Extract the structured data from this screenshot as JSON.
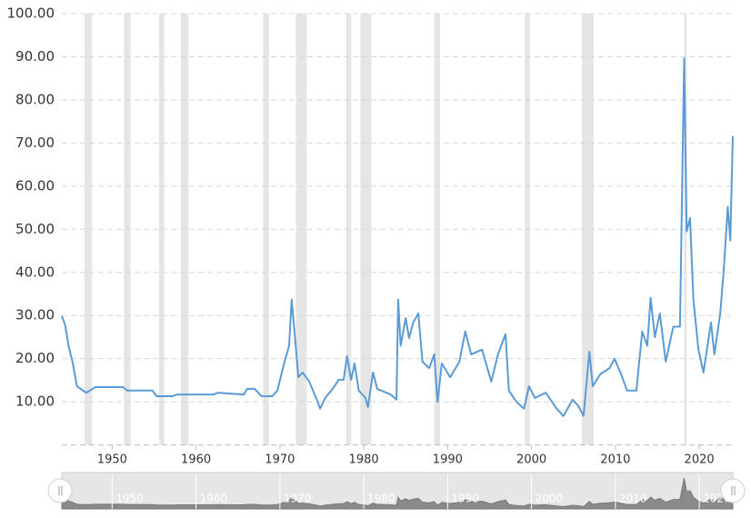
{
  "chart_data": {
    "type": "line",
    "x": [
      1944.0,
      1944.4,
      1944.8,
      1945.3,
      1945.8,
      1946.9,
      1948.0,
      1951.3,
      1951.8,
      1954.8,
      1955.3,
      1957.2,
      1957.8,
      1962.1,
      1962.6,
      1965.7,
      1966.1,
      1967.0,
      1967.8,
      1969.1,
      1969.7,
      1970.5,
      1971.1,
      1971.4,
      1971.8,
      1972.2,
      1972.7,
      1973.5,
      1974.4,
      1974.8,
      1975.4,
      1976.3,
      1977.0,
      1977.6,
      1978.0,
      1978.5,
      1978.9,
      1979.4,
      1980.2,
      1980.5,
      1981.1,
      1981.6,
      1983.2,
      1983.9,
      1984.1,
      1984.4,
      1985.0,
      1985.4,
      1985.9,
      1986.5,
      1987.0,
      1987.8,
      1988.4,
      1988.8,
      1989.3,
      1990.3,
      1991.4,
      1992.1,
      1992.8,
      1994.1,
      1995.2,
      1996.0,
      1996.9,
      1997.3,
      1998.2,
      1999.1,
      1999.7,
      2000.4,
      2001.7,
      2003.0,
      2003.8,
      2004.9,
      2005.6,
      2006.2,
      2006.9,
      2007.3,
      2008.2,
      2009.3,
      2009.9,
      2010.6,
      2011.4,
      2012.5,
      2013.2,
      2013.8,
      2014.2,
      2014.7,
      2015.3,
      2016.0,
      2016.9,
      2017.7,
      2018.2,
      2018.5,
      2018.9,
      2019.3,
      2019.9,
      2020.5,
      2021.4,
      2021.8,
      2022.5,
      2022.9,
      2023.4,
      2023.7,
      2024.0
    ],
    "series": [
      {
        "color": "#5b9bd5",
        "values": [
          29.9,
          27.8,
          23,
          19,
          13.6,
          12.1,
          13.4,
          13.4,
          12.6,
          12.6,
          11.3,
          11.3,
          11.7,
          11.7,
          12.1,
          11.7,
          13,
          13,
          11.3,
          11.3,
          12.6,
          18.9,
          23,
          33.7,
          25,
          15.7,
          16.8,
          14.7,
          10.5,
          8.4,
          10.9,
          13,
          15.1,
          15.1,
          20.6,
          15.1,
          18.9,
          12.6,
          10.9,
          8.8,
          16.8,
          13,
          11.7,
          10.5,
          33.7,
          23,
          29.4,
          24.8,
          28.4,
          30.5,
          19.3,
          17.8,
          21,
          10,
          18.9,
          15.7,
          19.3,
          26.3,
          21,
          22.1,
          14.7,
          21,
          25.7,
          12.6,
          10,
          8.4,
          13.6,
          10.9,
          12.1,
          8.4,
          6.7,
          10.5,
          9,
          6.7,
          21.6,
          13.6,
          16.4,
          17.8,
          20,
          16.8,
          12.6,
          12.6,
          26.3,
          23,
          34.1,
          25,
          30.5,
          19.3,
          27.4,
          27.4,
          89.6,
          49.5,
          52.6,
          33.7,
          22.1,
          16.8,
          28.4,
          21,
          30.5,
          40,
          55.2,
          47.4,
          71.6
        ]
      }
    ],
    "recessions": [
      [
        1946.7,
        1947.6
      ],
      [
        1951.4,
        1952.2
      ],
      [
        1955.6,
        1956.2
      ],
      [
        1958.2,
        1959.1
      ],
      [
        1968.0,
        1968.7
      ],
      [
        1971.9,
        1973.2
      ],
      [
        1977.9,
        1978.5
      ],
      [
        1979.6,
        1980.9
      ],
      [
        1988.4,
        1989.1
      ],
      [
        1999.2,
        1999.8
      ],
      [
        2006.0,
        2007.4
      ],
      [
        2018.2,
        2018.5
      ]
    ],
    "xlim": [
      1944,
      2024
    ],
    "xticks": [
      1950,
      1960,
      1970,
      1980,
      1990,
      2000,
      2010,
      2020
    ],
    "ylim": [
      0,
      100
    ],
    "yticks": [
      {
        "value": 10,
        "label": "10.00"
      },
      {
        "value": 20,
        "label": "20.00"
      },
      {
        "value": 30,
        "label": "30.00"
      },
      {
        "value": 40,
        "label": "40.00"
      },
      {
        "value": 50,
        "label": "50.00"
      },
      {
        "value": 60,
        "label": "60.00"
      },
      {
        "value": 70,
        "label": "70.00"
      },
      {
        "value": 80,
        "label": "80.00"
      },
      {
        "value": 90,
        "label": "90.00"
      },
      {
        "value": 100,
        "label": "100.00"
      }
    ],
    "grid": true
  }
}
